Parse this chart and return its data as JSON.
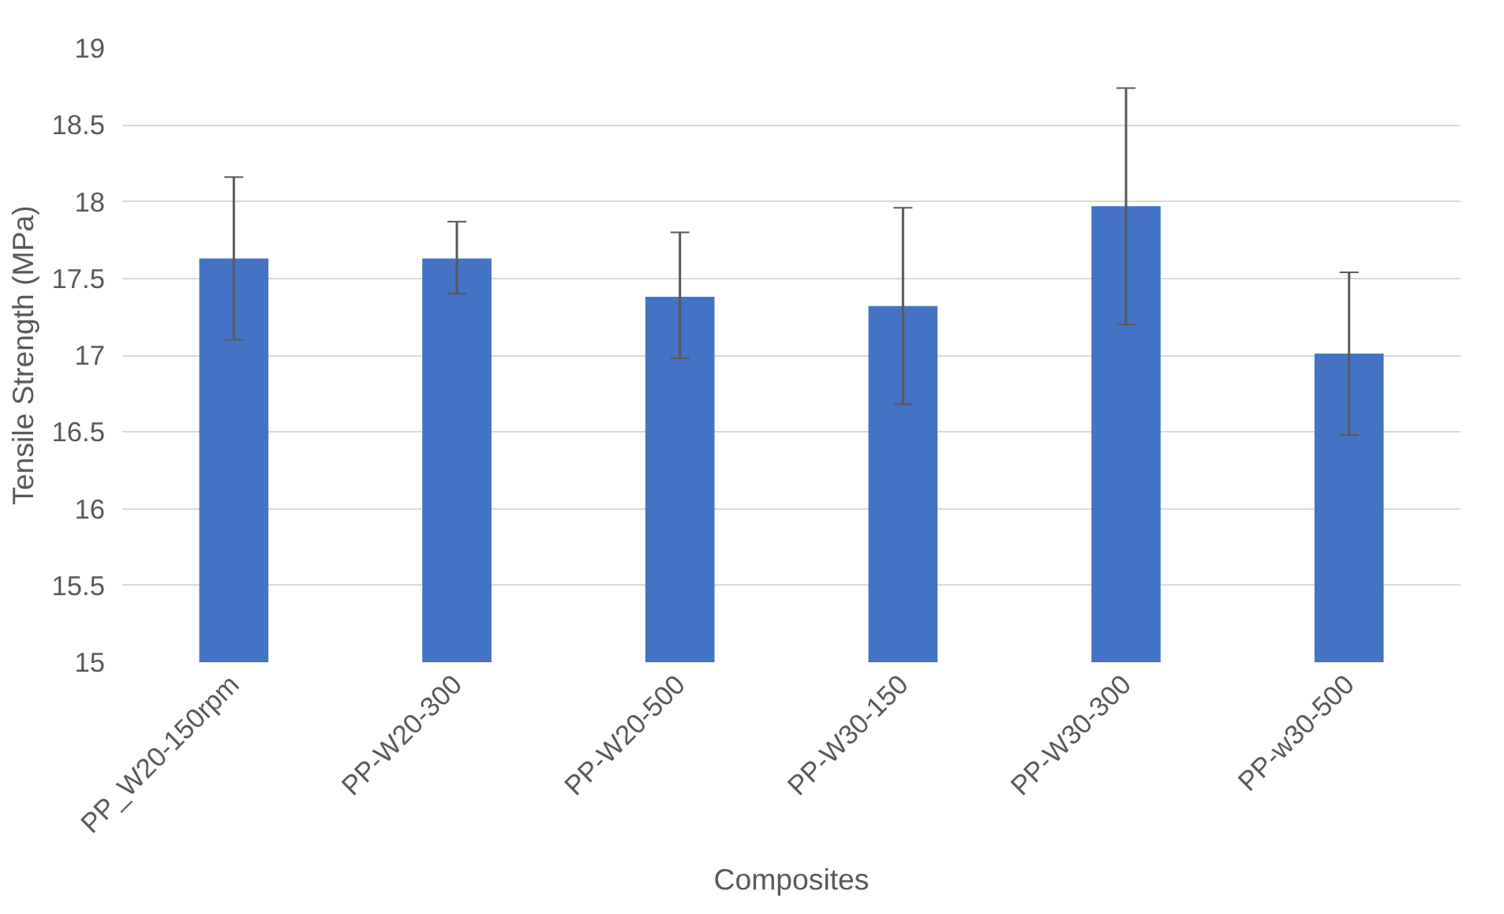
{
  "chart_data": {
    "type": "bar",
    "xlabel": "Composites",
    "ylabel": "Tensile Strength (MPa)",
    "categories": [
      "PP_W20-150rpm",
      "PP-W20-300",
      "PP-W20-500",
      "PP-W30-150",
      "PP-W30-300",
      "PP-w30-500"
    ],
    "values": [
      17.63,
      17.63,
      17.38,
      17.32,
      17.97,
      17.01
    ],
    "errors": [
      [
        17.1,
        18.16
      ],
      [
        17.4,
        17.87
      ],
      [
        16.98,
        17.8
      ],
      [
        16.68,
        17.96
      ],
      [
        17.2,
        18.74
      ],
      [
        16.48,
        17.54
      ]
    ],
    "color": "#4472c4",
    "ylim": [
      15,
      19
    ],
    "yticks": [
      15,
      15.5,
      16,
      16.5,
      17,
      17.5,
      18,
      18.5,
      19
    ],
    "grid": "y"
  }
}
